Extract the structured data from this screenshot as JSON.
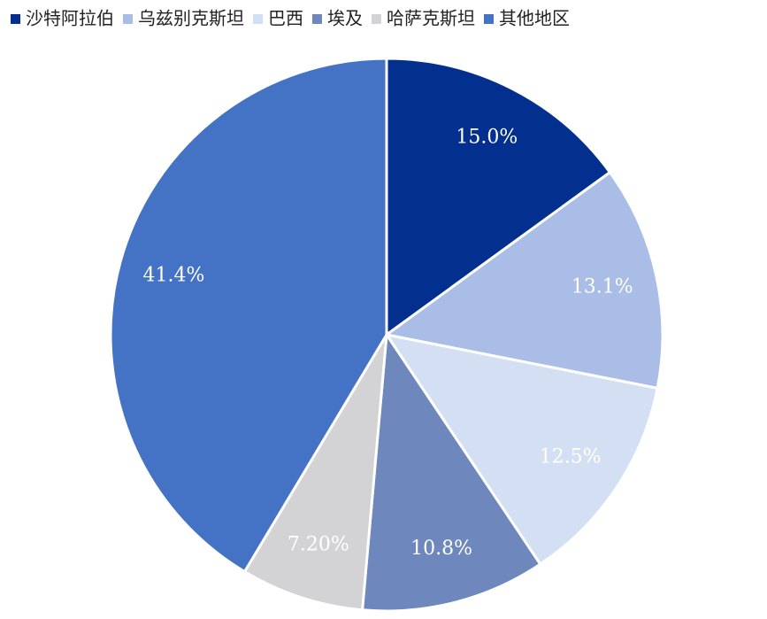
{
  "chart_data": {
    "type": "pie",
    "categories": [
      "沙特阿拉伯",
      "乌兹别克斯坦",
      "巴西",
      "埃及",
      "哈萨克斯坦",
      "其他地区"
    ],
    "values": [
      15.0,
      13.1,
      12.5,
      10.8,
      7.2,
      41.4
    ],
    "value_labels": [
      "15.0%",
      "13.1%",
      "12.5%",
      "10.8%",
      "7.20%",
      "41.4%"
    ],
    "colors": [
      "#03308f",
      "#a9bde6",
      "#d3dff2",
      "#6e87bd",
      "#d3d2d4",
      "#4472c4"
    ],
    "legend": "top"
  }
}
